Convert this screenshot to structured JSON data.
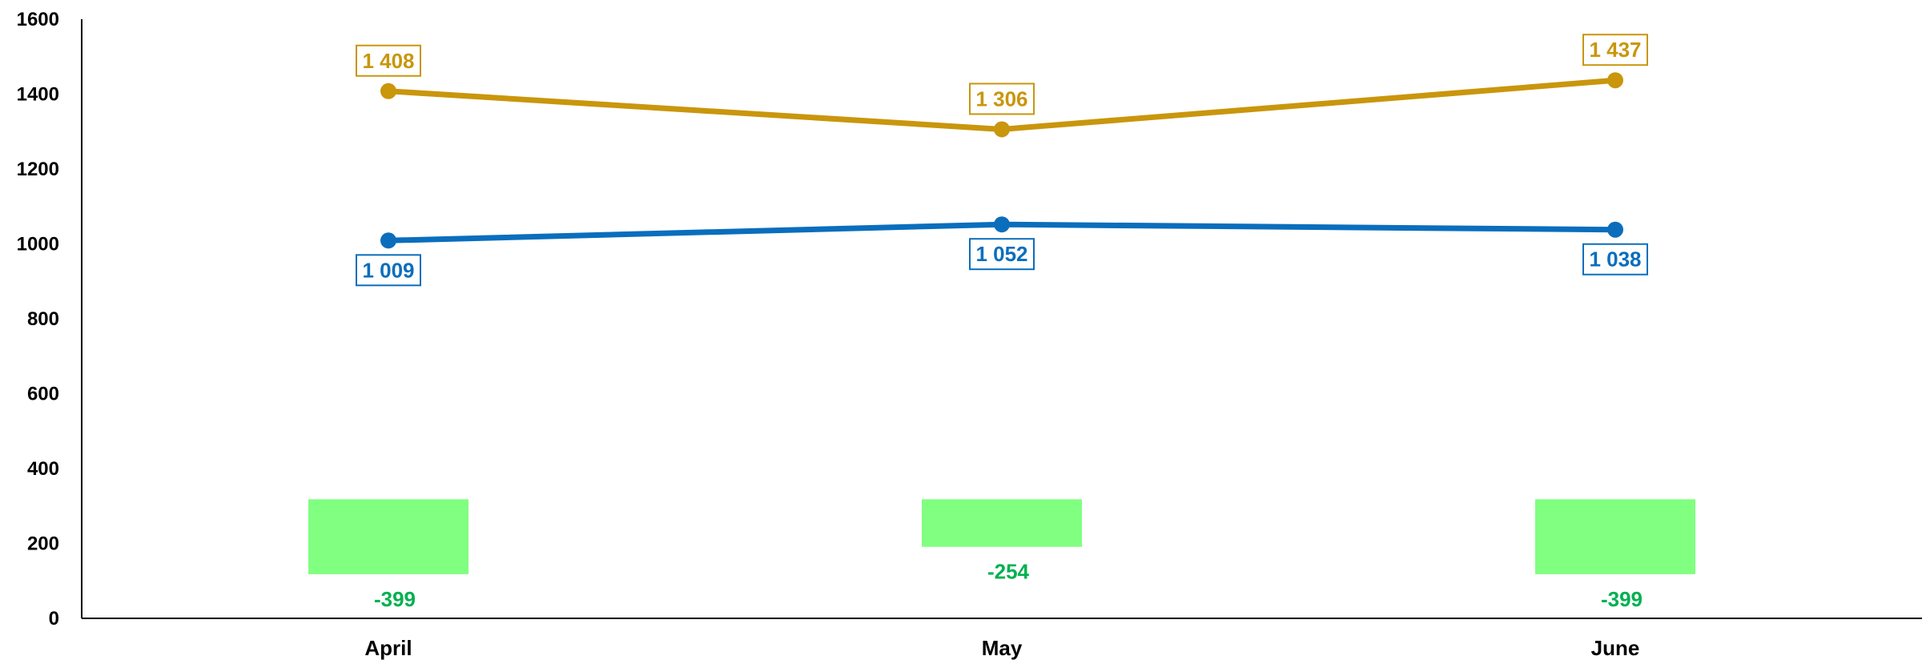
{
  "chart_data": {
    "type": "line",
    "categories": [
      "April",
      "May",
      "June"
    ],
    "ylim": [
      0,
      1600
    ],
    "yticks": [
      0,
      200,
      400,
      600,
      800,
      1000,
      1200,
      1400,
      1600
    ],
    "grid": false,
    "legend": "none",
    "series": [
      {
        "type": "line",
        "color": "#C9960C",
        "values": [
          1408,
          1306,
          1437
        ],
        "labels": [
          "1 408",
          "1 306",
          "1 437"
        ],
        "label_position": "above"
      },
      {
        "type": "line",
        "color": "#0A6EBD",
        "values": [
          1009,
          1052,
          1038
        ],
        "labels": [
          "1 009",
          "1 052",
          "1 038"
        ],
        "label_position": "below"
      }
    ],
    "difference": {
      "type": "floating-bar",
      "color": "#80FF80",
      "label_color": "#00B050",
      "top": [
        318,
        318,
        318
      ],
      "bottom": [
        118,
        191,
        118
      ],
      "values": [
        -399,
        -254,
        -399
      ],
      "labels": [
        "-399",
        "-254",
        "-399"
      ]
    }
  }
}
